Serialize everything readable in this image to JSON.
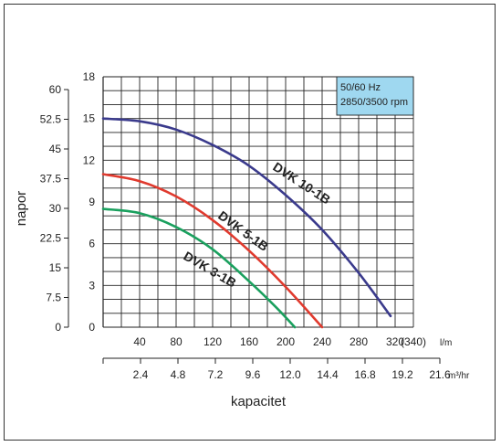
{
  "chart_data": {
    "type": "line",
    "ylabel": "napor",
    "xlabel": "kapacitet",
    "y_outer_ticks": [
      "0",
      "7.5",
      "15",
      "22.5",
      "30",
      "37.5",
      "45",
      "52.5",
      "60"
    ],
    "y_inner_ticks": [
      "0",
      "3",
      "6",
      "9",
      "12",
      "15",
      "18"
    ],
    "x_lm_ticks": [
      "40",
      "80",
      "120",
      "160",
      "200",
      "240",
      "280",
      "320",
      "(340)"
    ],
    "x_lm_unit": "l/m",
    "x_m3_ticks": [
      "2.4",
      "4.8",
      "7.2",
      "9.6",
      "12.0",
      "14.4",
      "16.8",
      "19.2",
      "21.6"
    ],
    "x_m3_unit": "m³/hr",
    "xlim": [
      0,
      340
    ],
    "ylim": [
      0,
      18
    ],
    "info_box": [
      "50/60 Hz",
      "2850/3500 rpm"
    ],
    "info_box_color": "#9fd8f0",
    "series": [
      {
        "name": "DVK 10-1B",
        "color": "#3a3a8c",
        "x": [
          0,
          40,
          80,
          120,
          160,
          200,
          240,
          280,
          315
        ],
        "y": [
          15.0,
          14.8,
          14.2,
          13.1,
          11.6,
          9.5,
          7.0,
          3.9,
          0.8
        ]
      },
      {
        "name": "DVK 5-1B",
        "color": "#e03a2e",
        "x": [
          0,
          40,
          80,
          120,
          160,
          200,
          240
        ],
        "y": [
          11.0,
          10.5,
          9.4,
          7.7,
          5.5,
          2.9,
          0.0
        ]
      },
      {
        "name": "DVK 3-1B",
        "color": "#1aa05e",
        "x": [
          0,
          40,
          80,
          120,
          160,
          190,
          210
        ],
        "y": [
          8.5,
          8.2,
          7.2,
          5.6,
          3.3,
          1.4,
          0.0
        ]
      }
    ]
  }
}
